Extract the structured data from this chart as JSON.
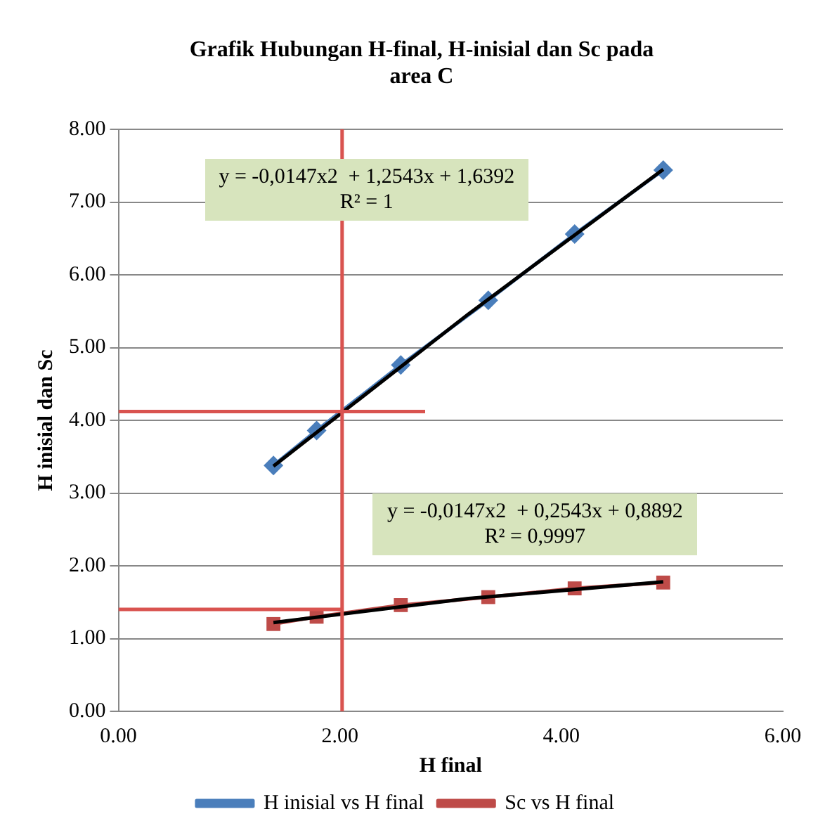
{
  "chart_data": {
    "type": "line",
    "title": "Grafik Hubungan H-final, H-inisial dan Sc pada area C",
    "xlabel": "H final",
    "ylabel": "H inisial dan Sc",
    "xlim": [
      0,
      6
    ],
    "xticks": [
      {
        "value": 0,
        "label": "0.00"
      },
      {
        "value": 2,
        "label": "2.00"
      },
      {
        "value": 4,
        "label": "4.00"
      },
      {
        "value": 6,
        "label": "6.00"
      }
    ],
    "ylim": [
      0,
      8
    ],
    "yticks": [
      {
        "value": 0,
        "label": "0.00"
      },
      {
        "value": 1,
        "label": "1.00"
      },
      {
        "value": 2,
        "label": "2.00"
      },
      {
        "value": 3,
        "label": "3.00"
      },
      {
        "value": 4,
        "label": "4.00"
      },
      {
        "value": 5,
        "label": "5.00"
      },
      {
        "value": 6,
        "label": "6.00"
      },
      {
        "value": 7,
        "label": "7.00"
      },
      {
        "value": 8,
        "label": "8.00"
      }
    ],
    "grid": "y",
    "legend": "bottom",
    "annotations": [
      "y = -0,0147x2  + 1,2543x + 1,6392\nR² = 1",
      "y = -0,0147x2  + 0,2543x + 0,8892\nR² = 0,9997"
    ],
    "series": [
      {
        "name": "H inisial vs H final",
        "color": "#4a7ebb",
        "marker": "diamond",
        "x": [
          1.4,
          1.79,
          2.55,
          3.34,
          4.12,
          4.92
        ],
        "values": [
          3.38,
          3.86,
          4.76,
          5.65,
          6.56,
          7.44
        ]
      },
      {
        "name": "Sc vs H final",
        "color": "#be4b48",
        "marker": "square",
        "x": [
          1.4,
          1.79,
          2.55,
          3.34,
          4.12,
          4.92
        ],
        "values": [
          1.2,
          1.3,
          1.46,
          1.57,
          1.69,
          1.77
        ]
      },
      {
        "color": "#000000",
        "marker": "none",
        "x": [
          1.4,
          3.16,
          4.92
        ],
        "values": [
          3.37,
          5.46,
          7.45
        ]
      },
      {
        "color": "#000000",
        "marker": "none",
        "x": [
          1.4,
          3.16,
          4.92
        ],
        "values": [
          1.22,
          1.55,
          1.78
        ]
      },
      {
        "color": "#d9534f",
        "marker": "none",
        "x": [
          2.02,
          2.02
        ],
        "values": [
          0,
          8
        ]
      },
      {
        "color": "#d9534f",
        "marker": "none",
        "x": [
          0,
          2.77
        ],
        "values": [
          4.12,
          4.12
        ]
      },
      {
        "color": "#d9534f",
        "marker": "none",
        "x": [
          0,
          2.02
        ],
        "values": [
          1.4,
          1.4
        ]
      }
    ]
  }
}
